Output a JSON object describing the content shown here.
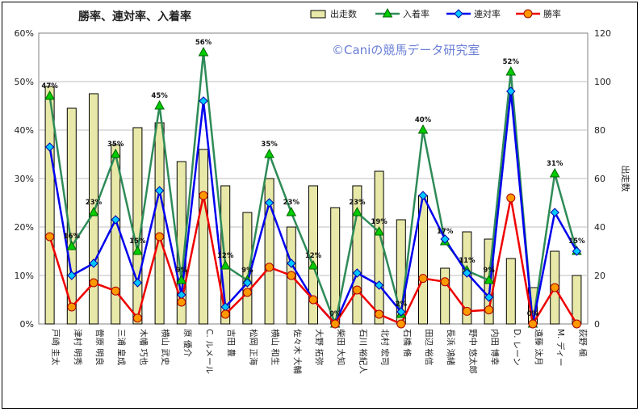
{
  "chart_data": {
    "type": "bar",
    "title": "勝率、連対率、入着率",
    "watermark": "©Caniの競馬データ研究室",
    "categories": [
      "戸崎 圭太",
      "津村 明秀",
      "菅原 明良",
      "三浦 皇成",
      "木幡 巧也",
      "横山 武史",
      "原 優介",
      "C. ルメール",
      "吉田 豊",
      "松岡 正海",
      "横山 和生",
      "佐々木 大輔",
      "大野 拓弥",
      "柴田 大知",
      "石川 裕紀人",
      "北村 宏司",
      "石橋 脩",
      "田辺 裕信",
      "長浜 鴻緒",
      "野中 悠太郎",
      "内田 博幸",
      "D. レーン",
      "遠藤 汰月",
      "M. ディー",
      "荻野 極"
    ],
    "y_left": {
      "min": 0,
      "max": 60,
      "step": 10,
      "unit": "%",
      "ticks": [
        "0%",
        "10%",
        "20%",
        "30%",
        "40%",
        "50%",
        "60%"
      ]
    },
    "y_right": {
      "min": 0,
      "max": 120,
      "step": 20,
      "label": "出走数",
      "ticks": [
        "0",
        "20",
        "40",
        "60",
        "80",
        "100",
        "120"
      ]
    },
    "grid": true,
    "legend_position": "top",
    "series": [
      {
        "name": "出走数",
        "kind": "bar",
        "axis": "right",
        "color": "#e8e8a8",
        "values": [
          98,
          89,
          95,
          74,
          81,
          83,
          67,
          72,
          57,
          46,
          60,
          40,
          57,
          48,
          57,
          63,
          43,
          53,
          23,
          38,
          35,
          27,
          15,
          30,
          20
        ]
      },
      {
        "name": "入着率",
        "kind": "line",
        "axis": "left",
        "color": "#2e8b57",
        "marker": "triangle",
        "marker_color": "#00cc00",
        "values": [
          47,
          16,
          23,
          35,
          15,
          45,
          9,
          56,
          12,
          9,
          35,
          23,
          12,
          0,
          23,
          19,
          2,
          40,
          17,
          11,
          9,
          52,
          0,
          31,
          15
        ],
        "labels": [
          "47%",
          "16%",
          "23%",
          "35%",
          "15%",
          "45%",
          "9%",
          "56%",
          "12%",
          "9%",
          "35%",
          "23%",
          "12%",
          "0%",
          "23%",
          "19%",
          "2%",
          "40%",
          "17%",
          "11%",
          "9%",
          "52%",
          "0%",
          "31%",
          "15%"
        ]
      },
      {
        "name": "連対率",
        "kind": "line",
        "axis": "left",
        "color": "#0000ee",
        "marker": "diamond",
        "marker_color": "#00c8ff",
        "values": [
          36.5,
          10,
          12.5,
          21.5,
          8.5,
          27.5,
          6,
          46,
          3.5,
          8.5,
          25,
          12.5,
          5,
          0,
          10.5,
          8,
          2.5,
          26.5,
          17.5,
          10.5,
          5.5,
          48,
          0,
          23,
          15
        ]
      },
      {
        "name": "勝率",
        "kind": "line",
        "axis": "left",
        "color": "#ee0000",
        "marker": "circle",
        "marker_color": "#ff9900",
        "values": [
          18,
          3.5,
          8.5,
          6.8,
          1.2,
          18,
          4.5,
          26.5,
          2,
          6.5,
          11.7,
          10,
          5,
          0,
          7,
          2,
          0,
          9.4,
          8.7,
          2.6,
          2.9,
          26,
          0,
          7.5,
          0
        ]
      }
    ]
  }
}
